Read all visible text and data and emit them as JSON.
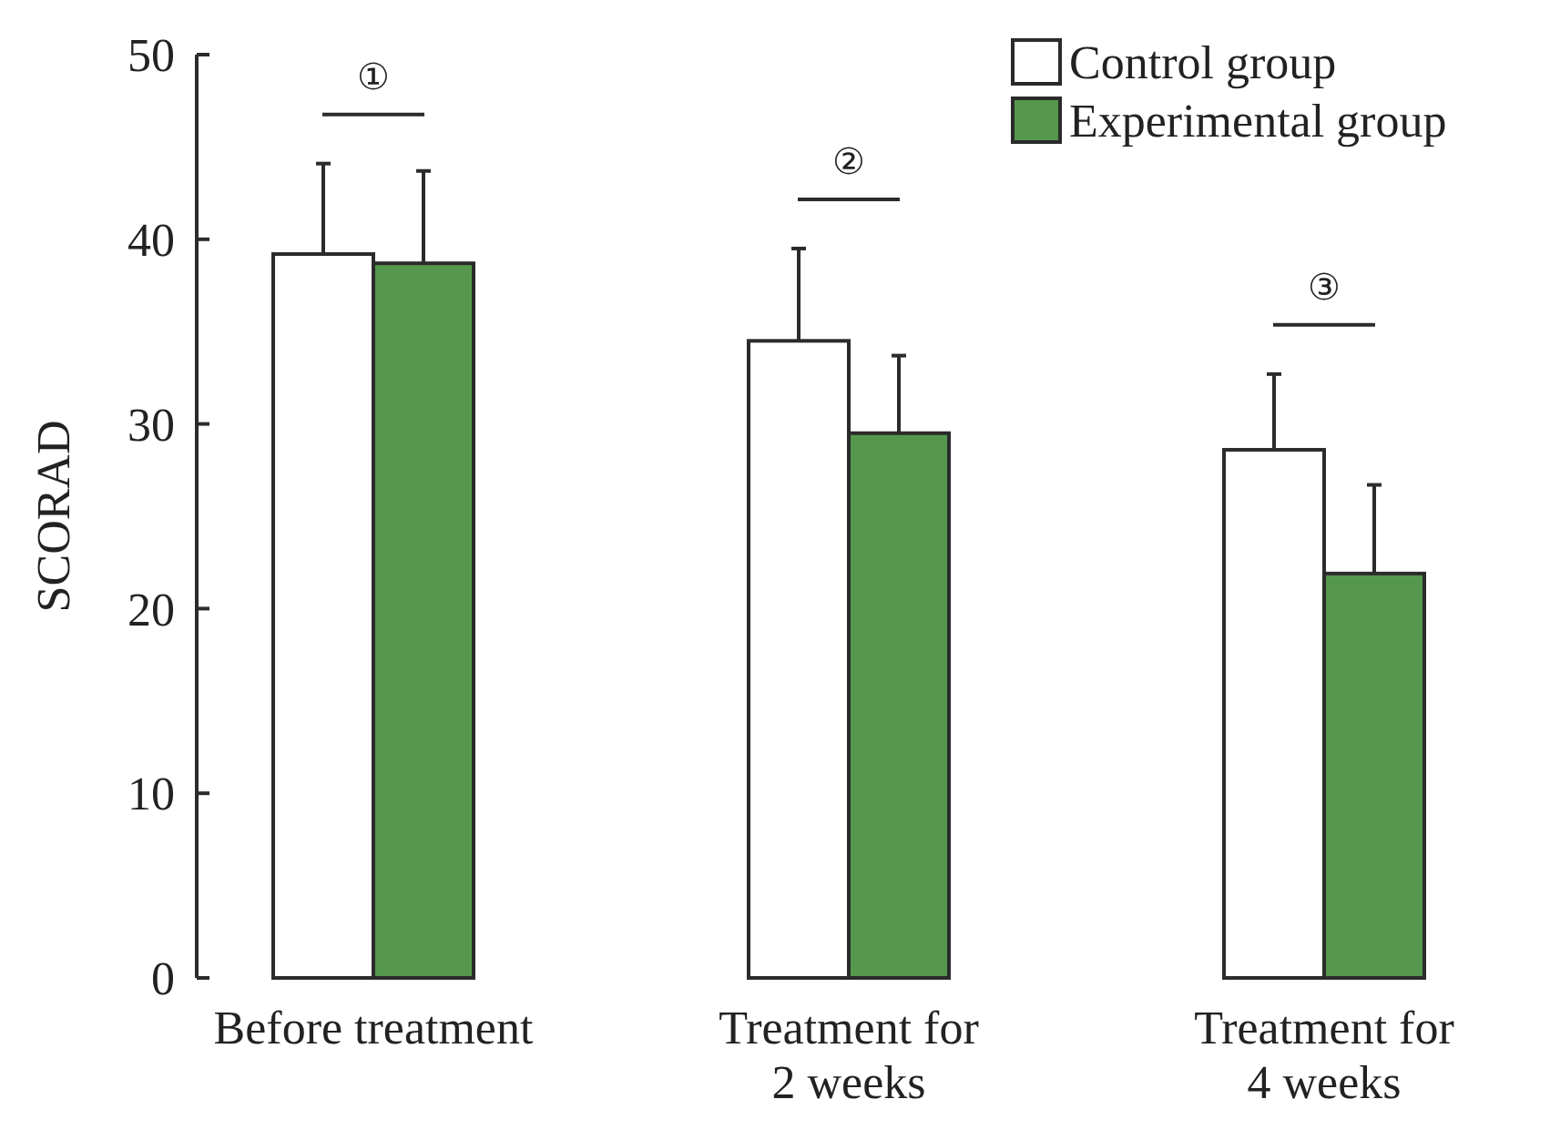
{
  "chart_data": {
    "type": "bar",
    "ylabel": "SCORAD",
    "categories": [
      "Before treatment",
      "Treatment for 2 weeks",
      "Treatment for 4 weeks"
    ],
    "series": [
      {
        "name": "Control group",
        "color": "#ffffff",
        "values": [
          39.2,
          34.5,
          28.6
        ],
        "errors": [
          [
            39.2,
            44.1
          ],
          [
            34.5,
            39.5
          ],
          [
            28.6,
            32.7
          ]
        ]
      },
      {
        "name": "Experimental group",
        "color": "#55984d",
        "values": [
          38.7,
          29.5,
          21.9
        ],
        "errors": [
          [
            38.7,
            43.7
          ],
          [
            29.5,
            33.7
          ],
          [
            21.9,
            26.7
          ]
        ]
      }
    ],
    "ylim": [
      0,
      50
    ],
    "yticks": [
      0,
      10,
      20,
      30,
      40,
      50
    ],
    "grid": false,
    "legend": "top right",
    "annotations": [
      "①",
      "②",
      "③"
    ]
  }
}
